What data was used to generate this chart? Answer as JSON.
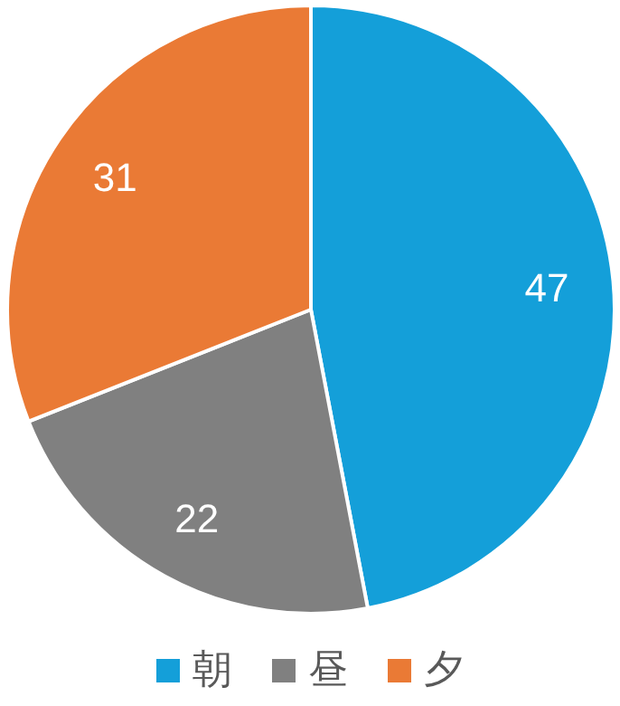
{
  "chart_data": {
    "type": "pie",
    "categories": [
      "朝",
      "昼",
      "夕"
    ],
    "values": [
      47,
      22,
      31
    ],
    "colors": [
      "#149fd9",
      "#808080",
      "#ea7a35"
    ],
    "data_labels": true,
    "legend": "bottom"
  }
}
